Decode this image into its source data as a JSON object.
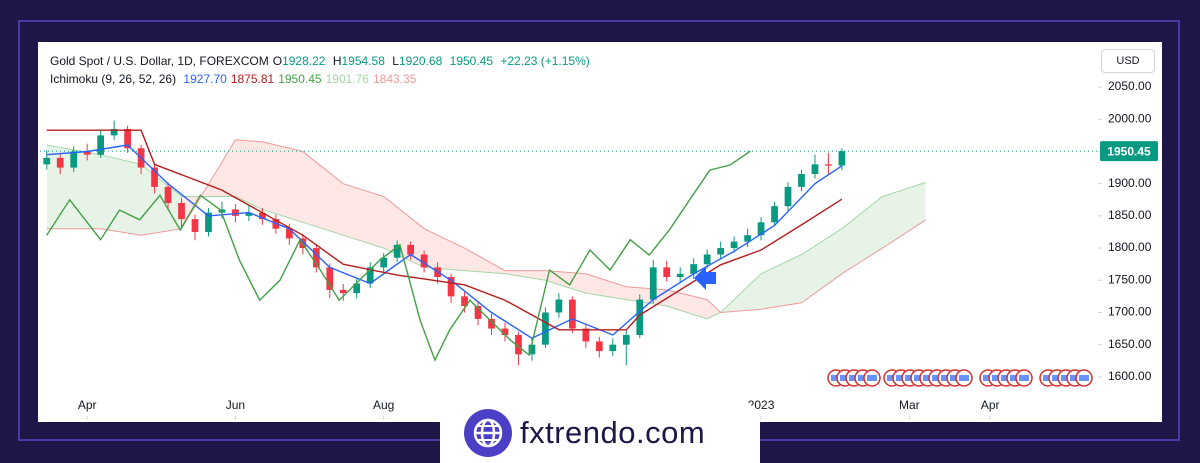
{
  "chart_data": {
    "type": "candlestick",
    "title": "Gold Spot / U.S. Dollar, 1D, FOREXCOM",
    "ohlc_prefixes": [
      "O",
      "H",
      "L"
    ],
    "change": "+22.23 (+1.15%)",
    "indicator": "Ichimoku (9, 26, 52, 26)",
    "indicator_values": [
      "1927.70",
      "1875.81",
      "1950.45",
      "1901.76",
      "1843.35"
    ],
    "currency": "USD",
    "price_label": {
      "value": 1950.45,
      "label": "1950.45"
    },
    "up_color": "#089981",
    "down_color": "#f23645",
    "candles": {
      "open": [
        1930,
        1940,
        1925,
        1950,
        1945,
        1975,
        1985,
        1955,
        1925,
        1895,
        1870,
        1845,
        1825,
        1855,
        1860,
        1850,
        1855,
        1845,
        1830,
        1815,
        1800,
        1770,
        1735,
        1730,
        1745,
        1770,
        1785,
        1805,
        1790,
        1770,
        1755,
        1725,
        1710,
        1690,
        1675,
        1665,
        1635,
        1650,
        1700,
        1720,
        1675,
        1655,
        1640,
        1650,
        1665,
        1720,
        1770,
        1755,
        1760,
        1775,
        1790,
        1800,
        1810,
        1820,
        1840,
        1865,
        1895,
        1915,
        1930,
        1928.22
      ],
      "high": [
        1952,
        1948,
        1958,
        1962,
        1982,
        1998,
        1990,
        1960,
        1930,
        1902,
        1878,
        1852,
        1862,
        1872,
        1868,
        1866,
        1862,
        1852,
        1838,
        1822,
        1806,
        1776,
        1744,
        1752,
        1778,
        1792,
        1812,
        1810,
        1796,
        1778,
        1760,
        1732,
        1718,
        1698,
        1684,
        1670,
        1660,
        1708,
        1730,
        1725,
        1682,
        1662,
        1660,
        1672,
        1728,
        1782,
        1780,
        1770,
        1784,
        1798,
        1810,
        1818,
        1830,
        1848,
        1872,
        1902,
        1922,
        1945,
        1948,
        1954.58
      ],
      "low": [
        1922,
        1915,
        1918,
        1936,
        1940,
        1968,
        1948,
        1915,
        1885,
        1860,
        1830,
        1812,
        1818,
        1846,
        1840,
        1842,
        1836,
        1822,
        1805,
        1790,
        1762,
        1722,
        1718,
        1722,
        1738,
        1762,
        1778,
        1782,
        1762,
        1745,
        1715,
        1700,
        1680,
        1665,
        1655,
        1618,
        1625,
        1645,
        1692,
        1668,
        1645,
        1630,
        1632,
        1618,
        1660,
        1714,
        1748,
        1745,
        1752,
        1768,
        1782,
        1792,
        1802,
        1812,
        1834,
        1858,
        1888,
        1908,
        1915,
        1920.68
      ],
      "close": [
        1940,
        1925,
        1950,
        1945,
        1975,
        1985,
        1955,
        1925,
        1895,
        1870,
        1845,
        1825,
        1855,
        1860,
        1850,
        1855,
        1845,
        1830,
        1815,
        1800,
        1770,
        1735,
        1730,
        1745,
        1770,
        1785,
        1805,
        1790,
        1770,
        1755,
        1725,
        1710,
        1690,
        1675,
        1665,
        1635,
        1650,
        1700,
        1720,
        1675,
        1655,
        1640,
        1650,
        1665,
        1720,
        1770,
        1755,
        1760,
        1775,
        1790,
        1800,
        1810,
        1820,
        1840,
        1865,
        1895,
        1915,
        1930,
        1928,
        1950.45
      ]
    },
    "series": [
      {
        "color": "#2962ff",
        "x": [
          0,
          3,
          6,
          9,
          12,
          15,
          18,
          21,
          24,
          27,
          30,
          33,
          36,
          39,
          42,
          45,
          48,
          51,
          54,
          57,
          59
        ],
        "values": [
          1945,
          1950,
          1960,
          1900,
          1850,
          1855,
          1830,
          1770,
          1745,
          1790,
          1750,
          1700,
          1660,
          1690,
          1665,
          1720,
          1760,
          1795,
          1835,
          1900,
          1927.7
        ]
      },
      {
        "color": "#b71c1c",
        "x": [
          0,
          7,
          8,
          13,
          19,
          22,
          26,
          31,
          34,
          38,
          43,
          44,
          47,
          50,
          53,
          56,
          59
        ],
        "values": [
          1983,
          1983,
          1930,
          1890,
          1820,
          1775,
          1758,
          1743,
          1719,
          1673,
          1673,
          1696,
          1735,
          1774,
          1797,
          1836,
          1875.81
        ]
      },
      {
        "color": "#43a047",
        "x": [
          0,
          1.7,
          4,
          5.4,
          6.9,
          8.4,
          9.9,
          11.4,
          12.9,
          14.3,
          15.8,
          17.3,
          18.8,
          20.3,
          21.7,
          23.2,
          24.7,
          26.2,
          27.7,
          28.8,
          29.9,
          31.4,
          32.9,
          34.4,
          35.8,
          37.3,
          38.8,
          40.3,
          41.8,
          43.3,
          44.7,
          46.2,
          47.7,
          49.2,
          50.7,
          52.2
        ],
        "values": [
          1820,
          1875,
          1813,
          1859,
          1844,
          1882,
          1828,
          1882,
          1859,
          1781,
          1719,
          1750,
          1813,
          1766,
          1719,
          1750,
          1781,
          1805,
          1688,
          1626,
          1673,
          1719,
          1688,
          1657,
          1634,
          1766,
          1743,
          1797,
          1766,
          1813,
          1789,
          1828,
          1875,
          1921,
          1929,
          1950.45
        ]
      },
      {
        "color": "#a5d6a7",
        "x": [
          0,
          4,
          7,
          10,
          14,
          16,
          19,
          22,
          25,
          28,
          31,
          34,
          37,
          40,
          43,
          46,
          49,
          50,
          53,
          56,
          59,
          62,
          65.2
        ],
        "values": [
          1960,
          1945,
          1930,
          1880,
          1880,
          1860,
          1840,
          1820,
          1800,
          1770,
          1765,
          1760,
          1750,
          1730,
          1720,
          1710,
          1690,
          1700,
          1760,
          1790,
          1830,
          1880,
          1901.76
        ]
      },
      {
        "color": "#ef9a9a",
        "x": [
          0,
          4,
          7,
          10,
          14,
          16,
          19,
          22,
          25,
          28,
          31,
          34,
          37,
          40,
          43,
          46,
          49,
          50,
          53,
          56,
          59,
          62,
          65.2
        ],
        "values": [
          1830,
          1830,
          1820,
          1830,
          1968,
          1965,
          1950,
          1900,
          1880,
          1830,
          1800,
          1765,
          1765,
          1760,
          1740,
          1735,
          1720,
          1700,
          1705,
          1715,
          1760,
          1800,
          1843.35
        ]
      }
    ],
    "cloud_up_color": "rgba(67,160,71,0.13)",
    "cloud_down_color": "rgba(244,67,54,0.13)",
    "xlim": [
      -0.5,
      78
    ],
    "ylim": [
      1533,
      2120
    ],
    "xticks": [
      {
        "value": 3,
        "label": "Apr"
      },
      {
        "value": 14,
        "label": "Jun"
      },
      {
        "value": 25,
        "label": "Aug"
      },
      {
        "value": 53,
        "label": "2023"
      },
      {
        "value": 64,
        "label": "Mar"
      },
      {
        "value": 70,
        "label": "Apr"
      }
    ],
    "yticks": [
      {
        "value": 2050,
        "label": "2050.00"
      },
      {
        "value": 2000,
        "label": "2000.00"
      },
      {
        "value": 1950,
        "label": "1950.00"
      },
      {
        "value": 1900,
        "label": "1900.00"
      },
      {
        "value": 1850,
        "label": "1850.00"
      },
      {
        "value": 1800,
        "label": "1800.00"
      },
      {
        "value": 1750,
        "label": "1750.00"
      },
      {
        "value": 1700,
        "label": "1700.00"
      },
      {
        "value": 1650,
        "label": "1650.00"
      },
      {
        "value": 1600,
        "label": "1600.00"
      }
    ],
    "watermark": "fxtrendo.com"
  }
}
